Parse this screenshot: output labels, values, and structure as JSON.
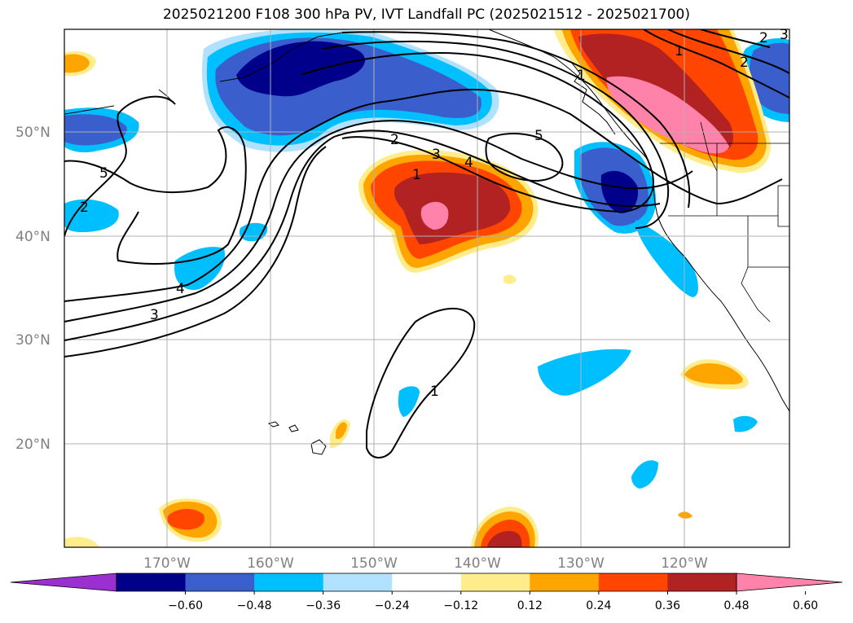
{
  "title": "2025021200 F108 300 hPa PV, IVT Landfall PC (2025021512 - 2025021700)",
  "lat_labels": [
    "50°N",
    "40°N",
    "30°N",
    "20°N"
  ],
  "lon_labels": [
    "170°W",
    "160°W",
    "150°W",
    "140°W",
    "130°W",
    "120°W"
  ],
  "colorbar": {
    "ticks": [
      "−0.60",
      "−0.48",
      "−0.36",
      "−0.24",
      "−0.12",
      "0.12",
      "0.24",
      "0.36",
      "0.48",
      "0.60"
    ],
    "colors": [
      "#9b30d0",
      "#00008b",
      "#3a5fcd",
      "#00bfff",
      "#b0e2ff",
      "#ffffff",
      "#ffec8b",
      "#ffa500",
      "#ff4500",
      "#b22222",
      "#ff82ab"
    ]
  },
  "contour_labels": [
    "5",
    "2",
    "3",
    "4",
    "1",
    "2",
    "3",
    "4",
    "5",
    "1",
    "2",
    "1",
    "2",
    "3",
    "1"
  ],
  "colors": {
    "pink": "#ff82ab",
    "darkred": "#b22222",
    "orangered": "#ff4500",
    "orange": "#ffa500",
    "yellow": "#ffec8b",
    "lightblue": "#b0e2ff",
    "skyblue": "#00bfff",
    "royalblue": "#3a5fcd",
    "navy": "#00008b",
    "grid": "#b0b0b0"
  }
}
